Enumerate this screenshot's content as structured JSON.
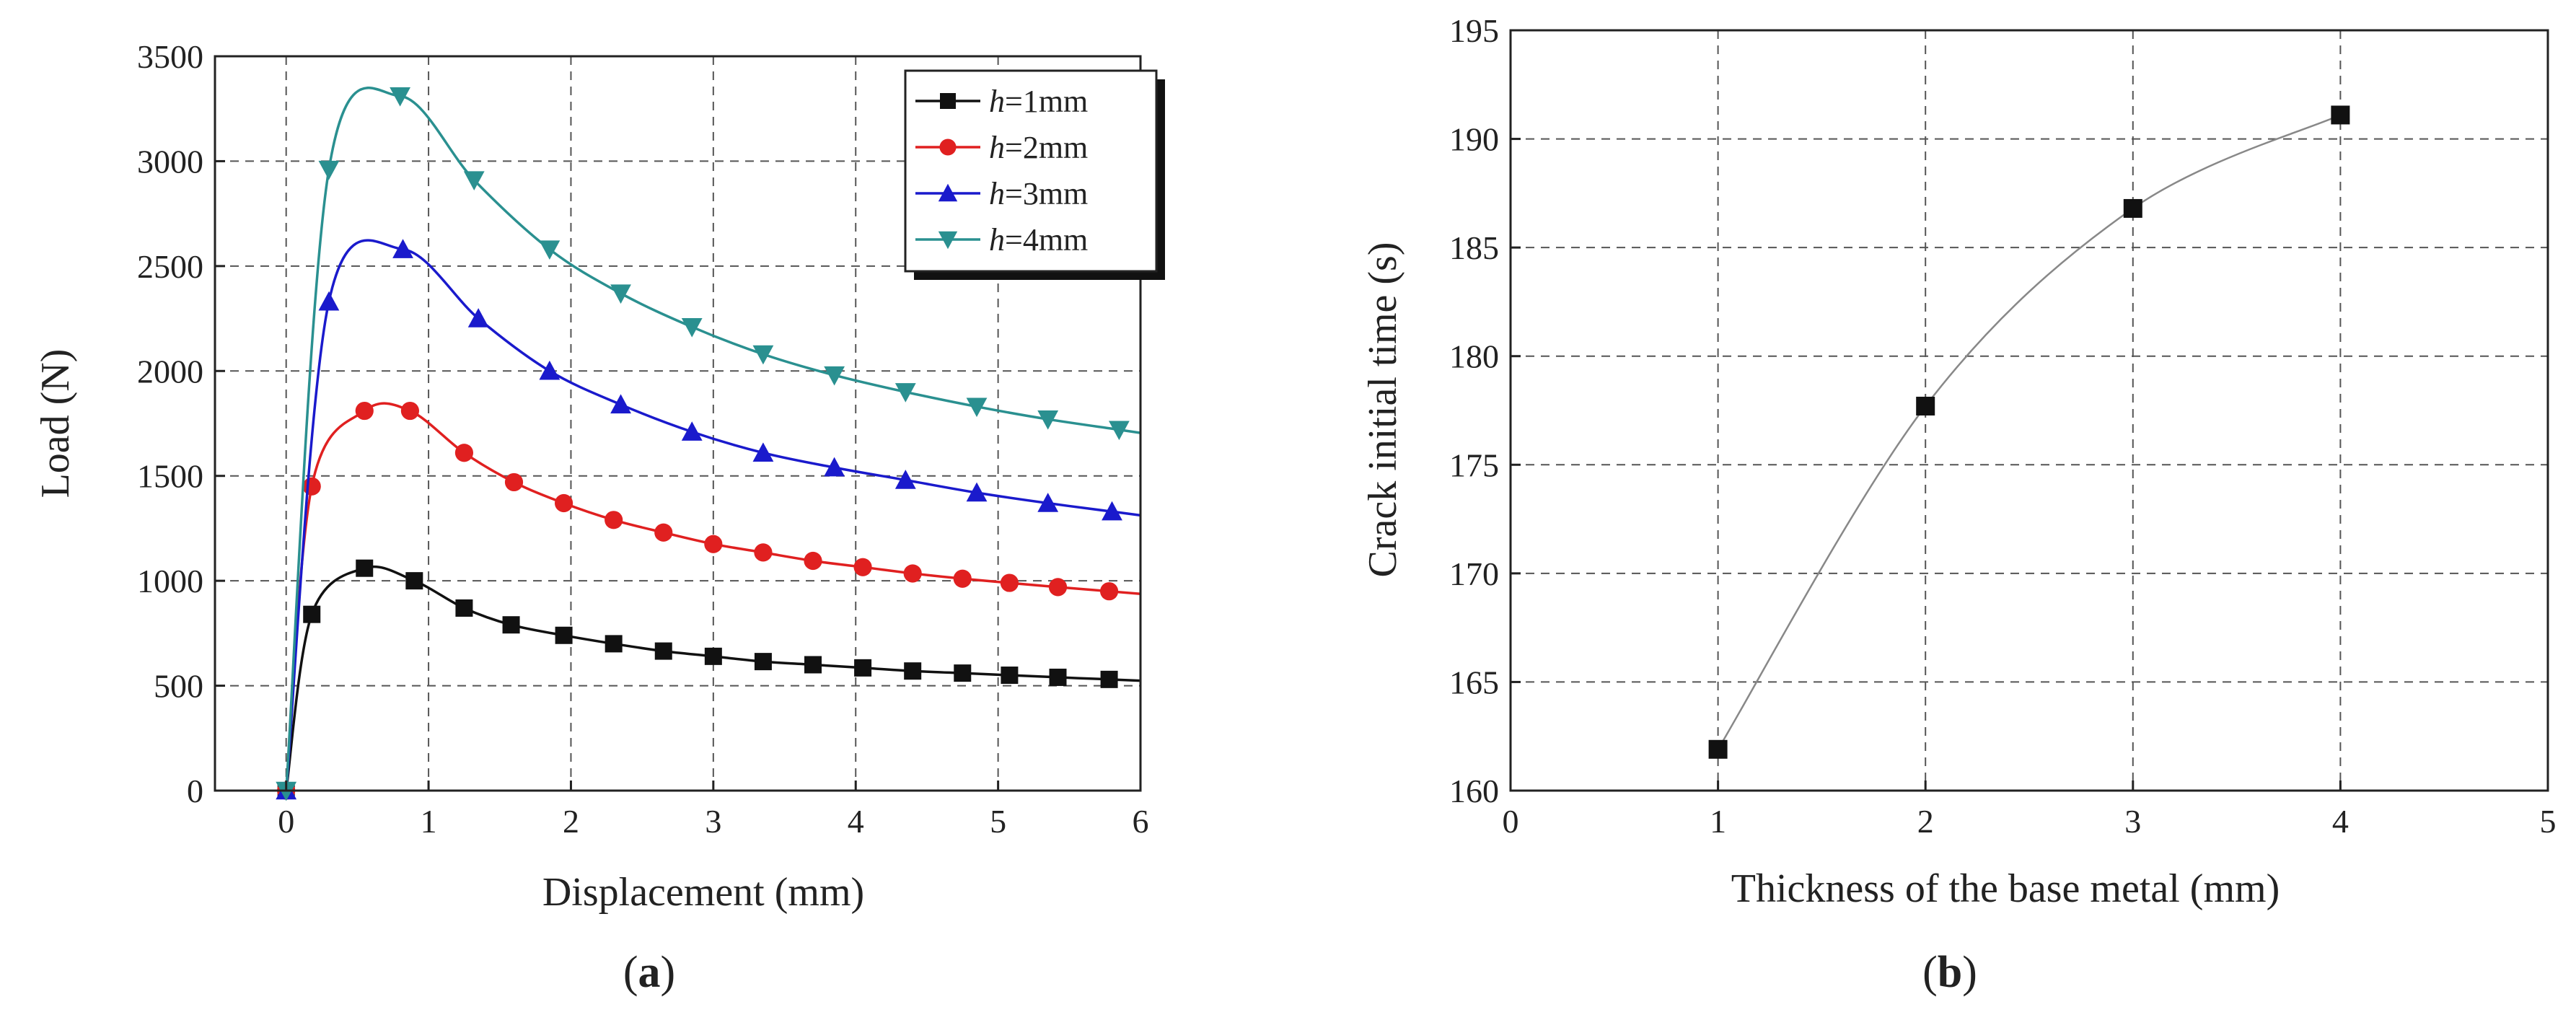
{
  "colors": {
    "axis": "#222222",
    "grid": "#555555",
    "background": "#ffffff",
    "curve_b": "#888888"
  },
  "panels": {
    "a": {
      "label_open": "(",
      "label_letter": "a",
      "label_close": ")"
    },
    "b": {
      "label_open": "(",
      "label_letter": "b",
      "label_close": ")"
    }
  },
  "chart_data": [
    {
      "id": "a",
      "type": "line",
      "title": "",
      "xlabel": "Displacement (mm)",
      "ylabel": "Load (N)",
      "xlim": [
        -0.5,
        6
      ],
      "ylim": [
        0,
        3500
      ],
      "xticks": [
        0,
        1,
        2,
        3,
        4,
        5,
        6
      ],
      "yticks": [
        0,
        500,
        1000,
        1500,
        2000,
        2500,
        3000,
        3500
      ],
      "grid": true,
      "legend_position": "top-right",
      "series": [
        {
          "name": "h=1mm",
          "legend_var": "h",
          "legend_suffix": "=1mm",
          "color": "#111111",
          "marker": "square",
          "x": [
            0,
            0.18,
            0.55,
            0.9,
            1.25,
            1.58,
            1.95,
            2.3,
            2.65,
            3.0,
            3.35,
            3.7,
            4.05,
            4.4,
            4.75,
            5.08,
            5.42,
            5.78
          ],
          "y": [
            0,
            840,
            1060,
            1000,
            870,
            790,
            740,
            700,
            665,
            640,
            615,
            600,
            585,
            570,
            560,
            550,
            540,
            530
          ]
        },
        {
          "name": "h=2mm",
          "legend_var": "h",
          "legend_suffix": "=2mm",
          "color": "#e02020",
          "marker": "circle",
          "x": [
            0,
            0.18,
            0.55,
            0.87,
            1.25,
            1.6,
            1.95,
            2.3,
            2.65,
            3.0,
            3.35,
            3.7,
            4.05,
            4.4,
            4.75,
            5.08,
            5.42,
            5.78
          ],
          "y": [
            0,
            1450,
            1810,
            1810,
            1610,
            1470,
            1370,
            1290,
            1230,
            1175,
            1135,
            1095,
            1065,
            1035,
            1010,
            990,
            970,
            950
          ]
        },
        {
          "name": "h=3mm",
          "legend_var": "h",
          "legend_suffix": "=3mm",
          "color": "#1a1acc",
          "marker": "triangle-up",
          "x": [
            0,
            0.3,
            0.82,
            1.35,
            1.85,
            2.35,
            2.85,
            3.35,
            3.85,
            4.35,
            4.85,
            5.35,
            5.8
          ],
          "y": [
            0,
            2330,
            2580,
            2250,
            2000,
            1840,
            1710,
            1610,
            1540,
            1480,
            1420,
            1370,
            1330
          ]
        },
        {
          "name": "h=4mm",
          "legend_var": "h",
          "legend_suffix": "=4mm",
          "color": "#2a9090",
          "marker": "triangle-down",
          "x": [
            0,
            0.3,
            0.8,
            1.32,
            1.85,
            2.35,
            2.85,
            3.35,
            3.85,
            4.35,
            4.85,
            5.35,
            5.85
          ],
          "y": [
            0,
            2960,
            3310,
            2910,
            2580,
            2370,
            2210,
            2080,
            1980,
            1900,
            1830,
            1770,
            1720
          ]
        }
      ]
    },
    {
      "id": "b",
      "type": "line",
      "title": "",
      "xlabel": "Thickness of the base metal (mm)",
      "ylabel": "Crack initial time (s)",
      "xlim": [
        0,
        5
      ],
      "ylim": [
        160,
        195
      ],
      "xticks": [
        0,
        1,
        2,
        3,
        4,
        5
      ],
      "yticks": [
        160,
        165,
        170,
        175,
        180,
        185,
        190,
        195
      ],
      "grid": true,
      "series": [
        {
          "name": "crack initial time",
          "color": "#111111",
          "marker": "square",
          "x": [
            1,
            2,
            3,
            4
          ],
          "y": [
            161.9,
            177.7,
            186.8,
            191.1
          ]
        }
      ]
    }
  ]
}
